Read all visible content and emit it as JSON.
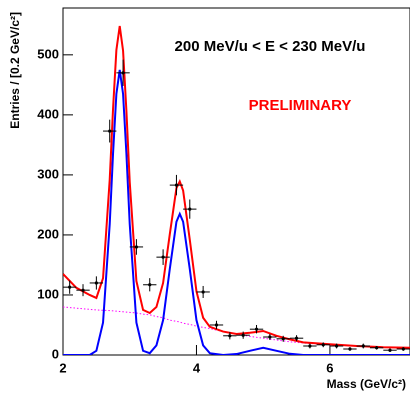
{
  "chart_data": {
    "type": "scatter",
    "title": "200 MeV/u < E < 230 MeV/u",
    "annotation": "PRELIMINARY",
    "annotation_color": "#ff0000",
    "x_label": "Mass (GeV/c²)",
    "y_label": "Entries / [0.2 GeV/c²]",
    "xlim": [
      2,
      7.2
    ],
    "ylim": [
      0,
      578
    ],
    "xticks": [
      2,
      4,
      6
    ],
    "yticks": [
      0,
      100,
      200,
      300,
      400,
      500
    ],
    "points": {
      "color": "#000000",
      "x": [
        2.1,
        2.3,
        2.5,
        2.7,
        2.9,
        3.1,
        3.3,
        3.5,
        3.7,
        3.9,
        4.1,
        4.3,
        4.5,
        4.7,
        4.9,
        5.1,
        5.3,
        5.5,
        5.7,
        5.9,
        6.1,
        6.3,
        6.5,
        6.7,
        6.9,
        7.1
      ],
      "values": [
        113,
        108,
        120,
        373,
        470,
        180,
        117,
        163,
        283,
        243,
        105,
        50,
        32,
        33,
        43,
        30,
        27,
        28,
        15,
        17,
        15,
        10,
        15,
        12,
        8,
        10
      ],
      "errors": [
        11,
        10,
        11,
        19,
        22,
        13,
        11,
        13,
        17,
        16,
        10,
        7,
        6,
        6,
        7,
        5,
        5,
        5,
        4,
        4,
        4,
        3,
        4,
        3,
        3,
        3
      ],
      "bin_width": 0.2
    },
    "curve_x": [
      2.0,
      2.2,
      2.4,
      2.5,
      2.6,
      2.7,
      2.75,
      2.8,
      2.85,
      2.9,
      2.95,
      3.0,
      3.1,
      3.2,
      3.3,
      3.4,
      3.5,
      3.6,
      3.7,
      3.75,
      3.8,
      3.9,
      4.0,
      4.1,
      4.2,
      4.4,
      4.6,
      4.8,
      5.0,
      5.2,
      5.4,
      5.6,
      6.0,
      6.4,
      6.8,
      7.2
    ],
    "curves": [
      {
        "color": "#ff00ff",
        "dotted": true,
        "width": 1,
        "values": [
          80,
          78,
          76,
          75,
          74.5,
          74,
          73.5,
          73,
          72.5,
          72,
          71.5,
          71,
          70,
          68,
          67,
          64,
          62,
          58,
          56,
          55,
          53,
          51,
          48,
          46,
          44,
          39,
          35,
          31,
          28,
          25,
          22,
          20,
          17,
          15,
          13,
          12
        ]
      },
      {
        "color": "#0000ff",
        "dotted": false,
        "width": 2,
        "values": [
          0,
          0,
          0,
          7,
          54,
          218,
          336,
          435,
          475,
          435,
          336,
          218,
          54,
          7,
          3,
          16,
          58,
          143,
          222,
          235,
          222,
          143,
          58,
          16,
          3,
          0,
          1.6,
          7,
          12,
          7,
          2,
          0,
          0,
          0,
          0,
          0
        ]
      },
      {
        "color": "#ff0000",
        "dotted": false,
        "width": 2,
        "values": [
          135,
          112,
          100,
          95,
          128,
          292,
          410,
          508,
          548,
          507,
          407,
          288,
          123,
          75,
          70,
          80,
          120,
          201,
          278,
          289,
          274,
          192,
          106,
          62,
          47,
          39,
          35,
          37,
          40,
          32,
          26,
          21,
          18,
          15,
          13,
          12
        ]
      }
    ]
  }
}
